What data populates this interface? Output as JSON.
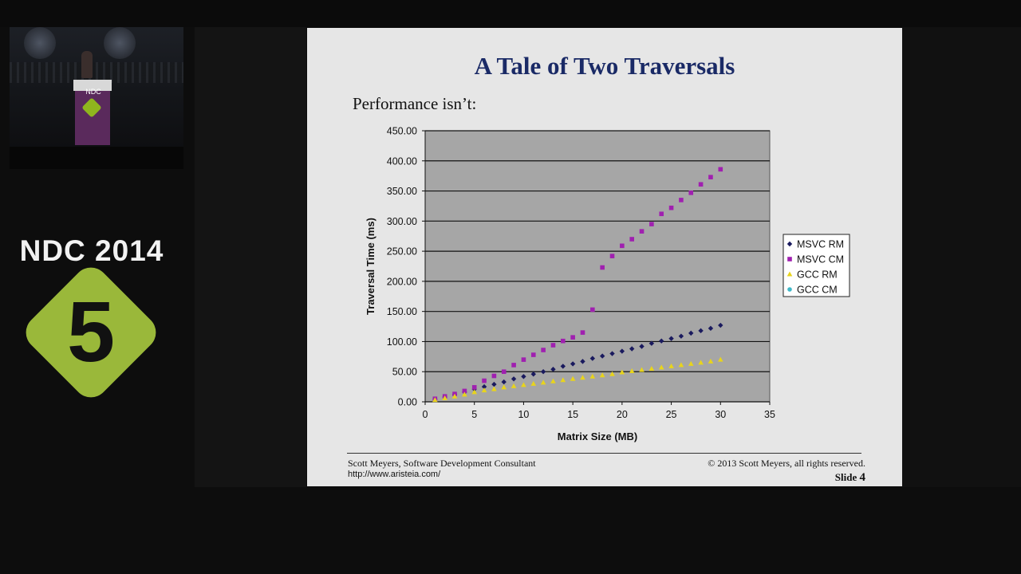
{
  "event": {
    "name": "NDC 2014",
    "logo_number": "5",
    "podium_text": "NDC"
  },
  "slide": {
    "title": "A Tale of Two Traversals",
    "subtitle": "Performance isn’t:",
    "footer_left": "Scott Meyers, Software Development  Consultant",
    "footer_url": "http://www.aristeia.com/",
    "footer_right": "© 2013 Scott Meyers, all rights reserved.",
    "slide_label": "Slide",
    "slide_number": "4"
  },
  "chart_data": {
    "type": "scatter",
    "title": "",
    "xlabel": "Matrix Size (MB)",
    "ylabel": "Traversal Time (ms)",
    "xlim": [
      0,
      35
    ],
    "ylim": [
      0,
      450
    ],
    "x_ticks": [
      "0",
      "5",
      "10",
      "15",
      "20",
      "25",
      "30",
      "35"
    ],
    "y_ticks": [
      "0.00",
      "50.00",
      "100.00",
      "150.00",
      "200.00",
      "250.00",
      "300.00",
      "350.00",
      "400.00",
      "450.00"
    ],
    "grid": "horizontal",
    "plot_background": "#a6a6a6",
    "legend_position": "right",
    "x": [
      1,
      2,
      3,
      4,
      5,
      6,
      7,
      8,
      9,
      10,
      11,
      12,
      13,
      14,
      15,
      16,
      17,
      18,
      19,
      20,
      21,
      22,
      23,
      24,
      25,
      26,
      27,
      28,
      29,
      30
    ],
    "series": [
      {
        "name": "MSVC RM",
        "marker": "diamond",
        "color": "#1a1a5e",
        "values": [
          4,
          8,
          12,
          16,
          21,
          25,
          29,
          33,
          38,
          42,
          46,
          50,
          54,
          59,
          63,
          67,
          72,
          76,
          80,
          84,
          88,
          92,
          97,
          101,
          105,
          109,
          114,
          118,
          122,
          127
        ]
      },
      {
        "name": "MSVC CM",
        "marker": "square",
        "color": "#a020b0",
        "values": [
          5,
          9,
          13,
          18,
          24,
          35,
          43,
          50,
          61,
          70,
          78,
          86,
          94,
          101,
          107,
          115,
          153,
          223,
          242,
          259,
          270,
          283,
          295,
          312,
          322,
          335,
          347,
          361,
          373,
          386
        ]
      },
      {
        "name": "GCC RM",
        "marker": "triangle",
        "color": "#e8d41c",
        "values": [
          3,
          6,
          9,
          12,
          16,
          19,
          21,
          24,
          26,
          28,
          30,
          32,
          34,
          36,
          38,
          40,
          42,
          44,
          46,
          49,
          51,
          53,
          55,
          57,
          59,
          61,
          63,
          65,
          67,
          70
        ]
      },
      {
        "name": "GCC CM",
        "marker": "circle",
        "color": "#40b8c8",
        "values": []
      }
    ]
  }
}
